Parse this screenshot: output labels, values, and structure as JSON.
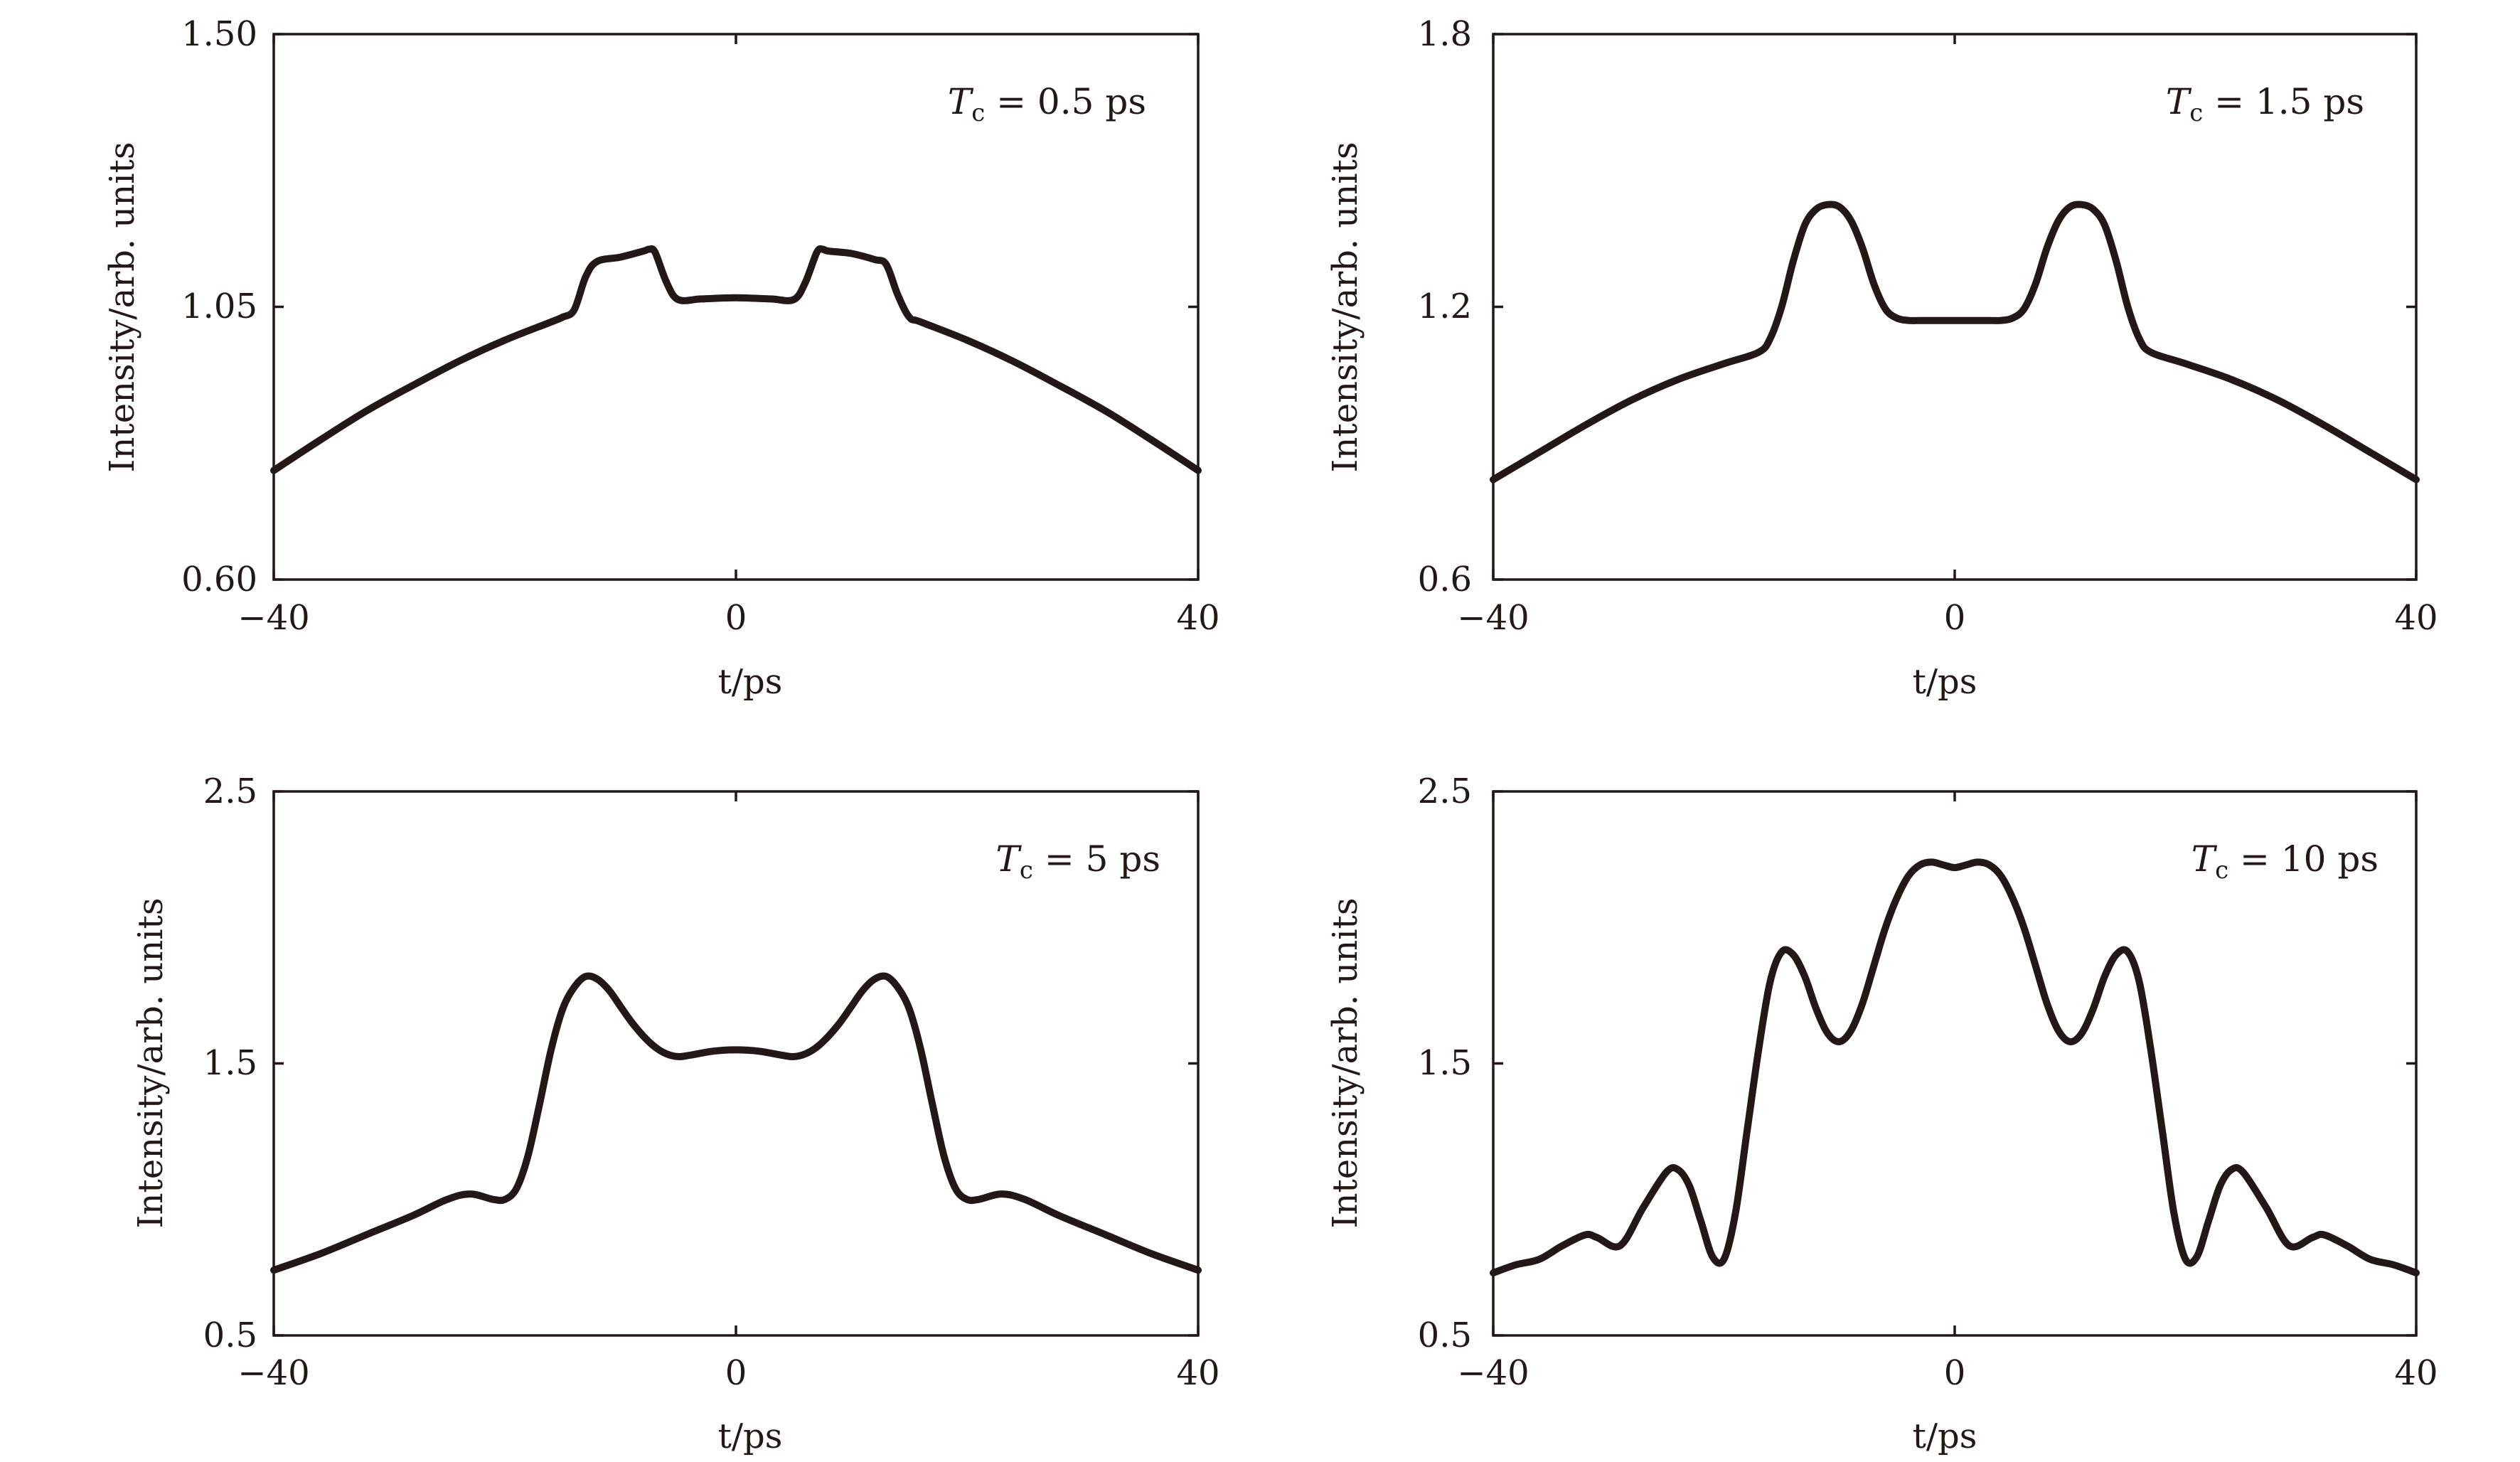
{
  "figure": {
    "background": "#ffffff",
    "ink_color": "#231815"
  },
  "chart_data": [
    {
      "type": "line",
      "annotation": "T_c = 0.5 ps",
      "annotation_parts": {
        "symbol": "T",
        "subscript": "c",
        "rest": " = 0.5 ps"
      },
      "annotation_position": "top-right",
      "xlabel": "t/ps",
      "ylabel": "Intensity/arb. units",
      "xlim": [
        -40,
        40
      ],
      "ylim": [
        0.6,
        1.5
      ],
      "xticks": [
        -40,
        0,
        40
      ],
      "xtick_labels": [
        "−40",
        "0",
        "40"
      ],
      "yticks": [
        0.6,
        1.05,
        1.5
      ],
      "ytick_labels": [
        "0.60",
        "1.05",
        "1.50"
      ],
      "grid": false,
      "series": [
        {
          "name": "intensity",
          "x": [
            -40,
            -36,
            -32,
            -28,
            -24,
            -20,
            -16,
            -15,
            -14,
            -13,
            -12,
            -10,
            -8,
            -7.5,
            -7,
            -6,
            -5,
            -3,
            0,
            3,
            5,
            6,
            7,
            7.5,
            8,
            10,
            12,
            13,
            14,
            15,
            16,
            20,
            24,
            28,
            32,
            36,
            40
          ],
          "y": [
            0.78,
            0.83,
            0.878,
            0.92,
            0.96,
            0.995,
            1.025,
            1.033,
            1.045,
            1.1,
            1.125,
            1.132,
            1.142,
            1.145,
            1.14,
            1.09,
            1.062,
            1.063,
            1.065,
            1.063,
            1.062,
            1.09,
            1.14,
            1.145,
            1.142,
            1.138,
            1.128,
            1.12,
            1.07,
            1.033,
            1.025,
            0.995,
            0.96,
            0.92,
            0.878,
            0.83,
            0.78
          ]
        }
      ]
    },
    {
      "type": "line",
      "annotation": "T_c = 1.5 ps",
      "annotation_parts": {
        "symbol": "T",
        "subscript": "c",
        "rest": " = 1.5 ps"
      },
      "annotation_position": "top-right",
      "xlabel": "t/ps",
      "ylabel": "Intensity/arb. units",
      "xlim": [
        -40,
        40
      ],
      "ylim": [
        0.6,
        1.8
      ],
      "xticks": [
        -40,
        0,
        40
      ],
      "xtick_labels": [
        "−40",
        "0",
        "40"
      ],
      "yticks": [
        0.6,
        1.2,
        1.8
      ],
      "ytick_labels": [
        "0.6",
        "1.2",
        "1.8"
      ],
      "grid": false,
      "series": [
        {
          "name": "intensity",
          "x": [
            -40,
            -36,
            -32,
            -28,
            -24,
            -20,
            -17,
            -16,
            -15,
            -14,
            -13,
            -12,
            -11,
            -10,
            -9,
            -8,
            -7,
            -6,
            -5,
            -4,
            -3,
            -2,
            0,
            2,
            3,
            4,
            5,
            6,
            7,
            8,
            9,
            10,
            11,
            12,
            13,
            14,
            15,
            16,
            17,
            20,
            24,
            28,
            32,
            36,
            40
          ],
          "y": [
            0.82,
            0.88,
            0.94,
            0.995,
            1.04,
            1.075,
            1.1,
            1.13,
            1.2,
            1.3,
            1.38,
            1.415,
            1.425,
            1.42,
            1.39,
            1.33,
            1.25,
            1.195,
            1.175,
            1.17,
            1.17,
            1.17,
            1.17,
            1.17,
            1.17,
            1.17,
            1.175,
            1.195,
            1.25,
            1.33,
            1.39,
            1.42,
            1.425,
            1.415,
            1.38,
            1.3,
            1.2,
            1.13,
            1.1,
            1.075,
            1.04,
            0.995,
            0.94,
            0.88,
            0.82
          ]
        }
      ]
    },
    {
      "type": "line",
      "annotation": "T_c = 5 ps",
      "annotation_parts": {
        "symbol": "T",
        "subscript": "c",
        "rest": " = 5 ps"
      },
      "annotation_position": "top-right",
      "xlabel": "t/ps",
      "ylabel": "Intensity/arb. units",
      "xlim": [
        -40,
        40
      ],
      "ylim": [
        0.5,
        2.5
      ],
      "xticks": [
        -40,
        0,
        40
      ],
      "xtick_labels": [
        "−40",
        "0",
        "40"
      ],
      "yticks": [
        0.5,
        1.5,
        2.5
      ],
      "ytick_labels": [
        "0.5",
        "1.5",
        "2.5"
      ],
      "grid": false,
      "series": [
        {
          "name": "intensity",
          "x": [
            -40,
            -36,
            -32,
            -28,
            -25,
            -23,
            -21,
            -20,
            -19,
            -18,
            -17,
            -16,
            -15,
            -14,
            -13,
            -12,
            -11,
            -10,
            -9,
            -8,
            -7,
            -6,
            -5,
            -4,
            -2,
            0,
            2,
            4,
            5,
            6,
            7,
            8,
            9,
            10,
            11,
            12,
            13,
            14,
            15,
            16,
            17,
            18,
            19,
            20,
            21,
            23,
            25,
            28,
            32,
            36,
            40
          ],
          "y": [
            0.74,
            0.8,
            0.87,
            0.94,
            1.0,
            1.02,
            1.0,
            1.0,
            1.04,
            1.16,
            1.35,
            1.55,
            1.7,
            1.78,
            1.82,
            1.81,
            1.77,
            1.71,
            1.65,
            1.6,
            1.56,
            1.535,
            1.525,
            1.53,
            1.545,
            1.55,
            1.545,
            1.53,
            1.525,
            1.535,
            1.56,
            1.6,
            1.65,
            1.71,
            1.77,
            1.81,
            1.82,
            1.78,
            1.7,
            1.55,
            1.35,
            1.16,
            1.04,
            1.0,
            1.0,
            1.02,
            1.0,
            0.94,
            0.87,
            0.8,
            0.74
          ]
        }
      ]
    },
    {
      "type": "line",
      "annotation": "T_c = 10 ps",
      "annotation_parts": {
        "symbol": "T",
        "subscript": "c",
        "rest": " = 10 ps"
      },
      "annotation_position": "top-right",
      "xlabel": "t/ps",
      "ylabel": "Intensity/arb. units",
      "xlim": [
        -40,
        40
      ],
      "ylim": [
        0.5,
        2.5
      ],
      "xticks": [
        -40,
        0,
        40
      ],
      "xtick_labels": [
        "−40",
        "0",
        "40"
      ],
      "yticks": [
        0.5,
        1.5,
        2.5
      ],
      "ytick_labels": [
        "0.5",
        "1.5",
        "2.5"
      ],
      "grid": false,
      "series": [
        {
          "name": "intensity",
          "x": [
            -40,
            -38,
            -36,
            -34,
            -32,
            -31,
            -29,
            -27,
            -25,
            -24,
            -23,
            -22,
            -21,
            -20,
            -19,
            -18,
            -17,
            -16,
            -15,
            -14,
            -13,
            -12,
            -11,
            -10,
            -9,
            -8,
            -7,
            -6,
            -5,
            -4,
            -3,
            -2,
            -1,
            0,
            1,
            2,
            3,
            4,
            5,
            6,
            7,
            8,
            9,
            10,
            11,
            12,
            13,
            14,
            15,
            16,
            17,
            18,
            19,
            20,
            21,
            22,
            23,
            24,
            25,
            27,
            29,
            31,
            32,
            34,
            36,
            38,
            40
          ],
          "y": [
            0.73,
            0.76,
            0.78,
            0.83,
            0.87,
            0.86,
            0.83,
            0.97,
            1.1,
            1.11,
            1.05,
            0.92,
            0.79,
            0.78,
            0.95,
            1.25,
            1.55,
            1.8,
            1.91,
            1.9,
            1.82,
            1.7,
            1.61,
            1.58,
            1.62,
            1.72,
            1.86,
            2.0,
            2.11,
            2.19,
            2.23,
            2.24,
            2.23,
            2.22,
            2.23,
            2.24,
            2.23,
            2.19,
            2.11,
            2.0,
            1.86,
            1.72,
            1.62,
            1.58,
            1.61,
            1.7,
            1.82,
            1.9,
            1.91,
            1.8,
            1.55,
            1.25,
            0.95,
            0.78,
            0.79,
            0.92,
            1.05,
            1.11,
            1.1,
            0.97,
            0.83,
            0.86,
            0.87,
            0.83,
            0.78,
            0.76,
            0.73
          ]
        }
      ]
    }
  ]
}
